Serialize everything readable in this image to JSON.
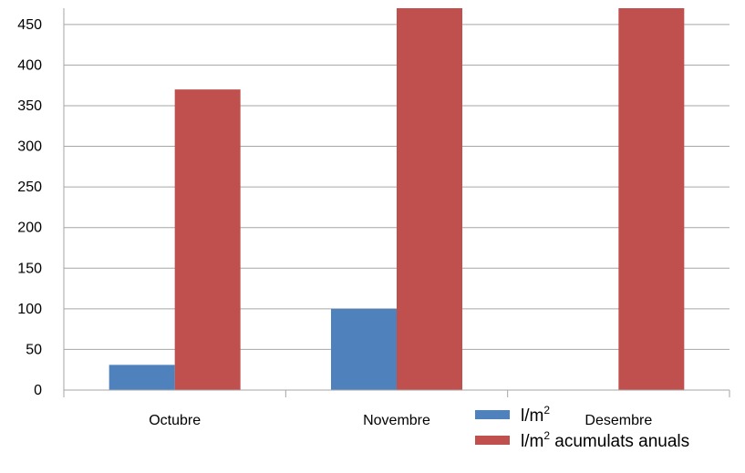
{
  "chart_data": {
    "type": "bar",
    "title": "",
    "xlabel": "",
    "ylabel": "",
    "categories": [
      "Octubre",
      "Novembre",
      "Desembre"
    ],
    "series": [
      {
        "name": "l/m2",
        "name_base": "l/m",
        "name_sup": "2",
        "name_suffix": "",
        "color": "#4f81bd",
        "values": [
          31,
          100,
          0
        ]
      },
      {
        "name": "l/m2 acumulats anuals",
        "name_base": "l/m",
        "name_sup": "2",
        "name_suffix": " acumulats anuals",
        "color": "#c0504d",
        "values": [
          370,
          470,
          470
        ]
      }
    ],
    "ylim": [
      0,
      470
    ],
    "yticks": [
      0,
      50,
      100,
      150,
      200,
      250,
      300,
      350,
      400,
      450
    ],
    "grid": true,
    "legend_position": "bottom-right"
  }
}
